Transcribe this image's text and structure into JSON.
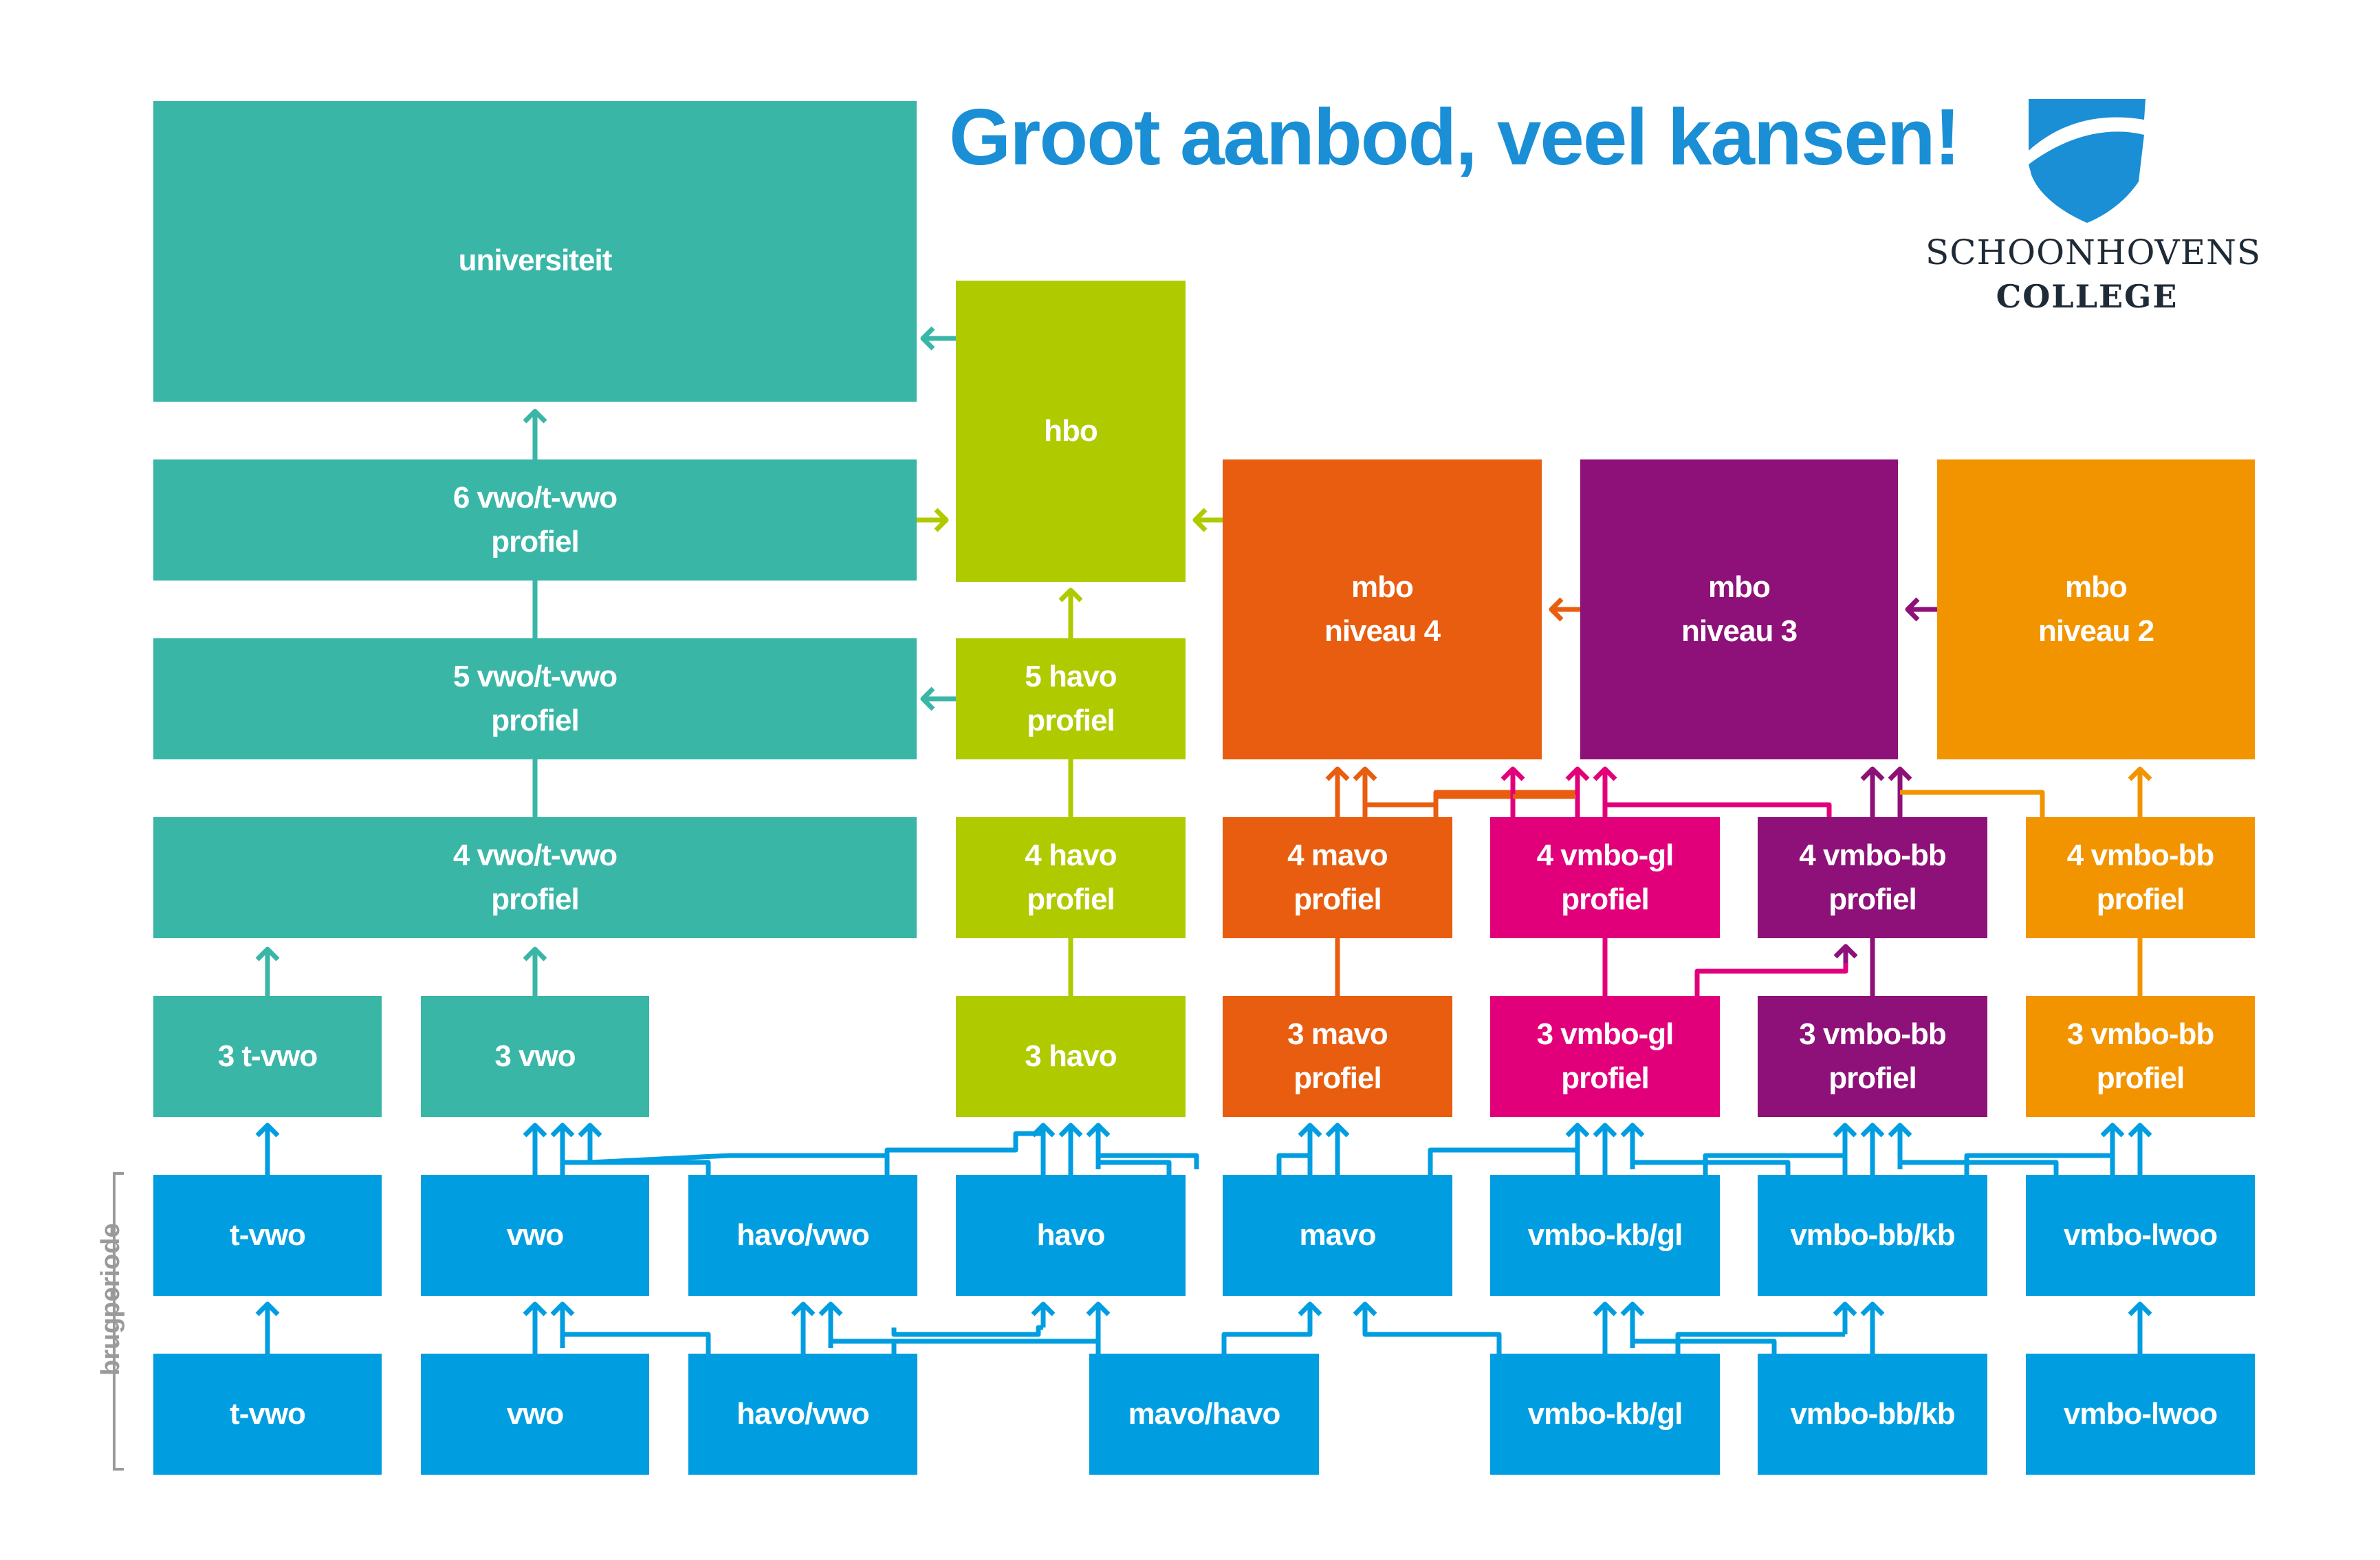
{
  "header": {
    "title": "Groot aanbod, veel kansen!"
  },
  "logo": {
    "line1": "SCHOONHOVENS",
    "line2": "COLLEGE",
    "icon": "shield-logo-icon",
    "color": "#1a8fd6"
  },
  "sidebar": {
    "label": "brugperiode"
  },
  "colors": {
    "teal": "#3ab6a7",
    "lime": "#b0ca00",
    "blue": "#009ee0",
    "orange": "#e85d0f",
    "magenta": "#e2007a",
    "purple": "#8d1178",
    "amber": "#f29400"
  },
  "boxes": {
    "universiteit": "universiteit",
    "hbo": "hbo",
    "vwo6": "6 vwo/t-vwo\nprofiel",
    "vwo5": "5 vwo/t-vwo\nprofiel",
    "vwo4": "4 vwo/t-vwo\nprofiel",
    "havo5": "5 havo\nprofiel",
    "havo4": "4 havo\nprofiel",
    "mbo4": "mbo\nniveau 4",
    "mbo3": "mbo\nniveau 3",
    "mbo2": "mbo\nniveau 2",
    "mavo4": "4 mavo\nprofiel",
    "gl4": "4 vmbo-gl\nprofiel",
    "bb4p": "4 vmbo-bb\nprofiel",
    "bb4o": "4 vmbo-bb\nprofiel",
    "tvwo3": "3 t-vwo",
    "vwo3": "3 vwo",
    "havo3": "3 havo",
    "mavo3": "3 mavo\nprofiel",
    "gl3": "3 vmbo-gl\nprofiel",
    "bb3p": "3 vmbo-bb\nprofiel",
    "bb3o": "3 vmbo-bb\nprofiel",
    "b2_tvwo": "t-vwo",
    "b2_vwo": "vwo",
    "b2_havovwo": "havo/vwo",
    "b2_havo": "havo",
    "b2_mavo": "mavo",
    "b2_kbgl": "vmbo-kb/gl",
    "b2_bbkb": "vmbo-bb/kb",
    "b2_lwoo": "vmbo-lwoo",
    "b1_tvwo": "t-vwo",
    "b1_vwo": "vwo",
    "b1_havovwo": "havo/vwo",
    "b1_mavohavo": "mavo/havo",
    "b1_kbgl": "vmbo-kb/gl",
    "b1_bbkb": "vmbo-bb/kb",
    "b1_lwoo": "vmbo-lwoo"
  }
}
